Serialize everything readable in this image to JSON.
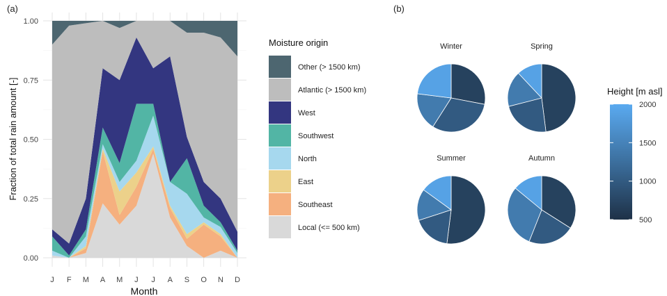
{
  "panel_labels": {
    "a": "(a)",
    "b": "(b)"
  },
  "chart_data": [
    {
      "type": "area",
      "stacked": true,
      "panel": "(a)",
      "xlabel": "Month",
      "ylabel": "Fraction of total rain amount [-]",
      "categories": [
        "J",
        "F",
        "M",
        "A",
        "M",
        "J",
        "J",
        "A",
        "S",
        "O",
        "N",
        "D"
      ],
      "ylim": [
        0,
        1
      ],
      "yticks": [
        "0.00",
        "0.25",
        "0.50",
        "0.75",
        "1.00"
      ],
      "grid": true,
      "legend": {
        "title": "Moisture origin",
        "position": "right"
      },
      "series": [
        {
          "name": "Local (<= 500 km)",
          "color": "#d9d9d9",
          "values": [
            0.01,
            0.0,
            0.02,
            0.23,
            0.14,
            0.22,
            0.44,
            0.17,
            0.05,
            0.0,
            0.03,
            0.0
          ]
        },
        {
          "name": "Southeast",
          "color": "#f5b07f",
          "values": [
            0.0,
            0.0,
            0.02,
            0.22,
            0.04,
            0.08,
            0.02,
            0.04,
            0.03,
            0.14,
            0.06,
            0.0
          ]
        },
        {
          "name": "East",
          "color": "#ecd18a",
          "values": [
            0.0,
            0.0,
            0.01,
            0.01,
            0.1,
            0.06,
            0.01,
            0.01,
            0.02,
            0.01,
            0.01,
            0.0
          ]
        },
        {
          "name": "North",
          "color": "#a6d8ee",
          "values": [
            0.02,
            0.0,
            0.04,
            0.02,
            0.04,
            0.05,
            0.13,
            0.1,
            0.17,
            0.02,
            0.03,
            0.02
          ]
        },
        {
          "name": "Southwest",
          "color": "#52b5a5",
          "values": [
            0.06,
            0.01,
            0.03,
            0.07,
            0.08,
            0.24,
            0.05,
            0.0,
            0.15,
            0.05,
            0.02,
            0.01
          ]
        },
        {
          "name": "West",
          "color": "#333680",
          "values": [
            0.03,
            0.05,
            0.13,
            0.25,
            0.35,
            0.28,
            0.15,
            0.53,
            0.09,
            0.1,
            0.1,
            0.08
          ]
        },
        {
          "name": "Atlantic (> 1500 km)",
          "color": "#bdbdbd",
          "values": [
            0.78,
            0.92,
            0.74,
            0.2,
            0.22,
            0.07,
            0.2,
            0.15,
            0.44,
            0.63,
            0.68,
            0.74
          ]
        },
        {
          "name": "Other (> 1500 km)",
          "color": "#4d6670",
          "values": [
            0.1,
            0.02,
            0.01,
            0.0,
            0.03,
            0.0,
            0.0,
            0.0,
            0.05,
            0.05,
            0.07,
            0.15
          ]
        }
      ]
    },
    {
      "type": "pie",
      "panel": "(b)",
      "legend": {
        "title": "Height [m asl]",
        "type": "colorbar",
        "position": "right",
        "range": [
          500,
          2000
        ],
        "ticks": [
          "2000",
          "1500",
          "1000",
          "500"
        ],
        "colors": [
          "#1e3147",
          "#3c6f9e",
          "#5aaaf0"
        ]
      },
      "pies": [
        {
          "title": "Winter",
          "slices": [
            {
              "height": 700,
              "share": 0.28
            },
            {
              "height": 1000,
              "share": 0.31
            },
            {
              "height": 1400,
              "share": 0.18
            },
            {
              "height": 1900,
              "share": 0.23
            }
          ]
        },
        {
          "title": "Spring",
          "slices": [
            {
              "height": 700,
              "share": 0.48
            },
            {
              "height": 1000,
              "share": 0.23
            },
            {
              "height": 1400,
              "share": 0.17
            },
            {
              "height": 1900,
              "share": 0.12
            }
          ]
        },
        {
          "title": "Summer",
          "slices": [
            {
              "height": 700,
              "share": 0.52
            },
            {
              "height": 1000,
              "share": 0.18
            },
            {
              "height": 1400,
              "share": 0.15
            },
            {
              "height": 1900,
              "share": 0.15
            }
          ]
        },
        {
          "title": "Autumn",
          "slices": [
            {
              "height": 700,
              "share": 0.34
            },
            {
              "height": 1000,
              "share": 0.22
            },
            {
              "height": 1400,
              "share": 0.3
            },
            {
              "height": 1900,
              "share": 0.14
            }
          ]
        }
      ]
    }
  ]
}
